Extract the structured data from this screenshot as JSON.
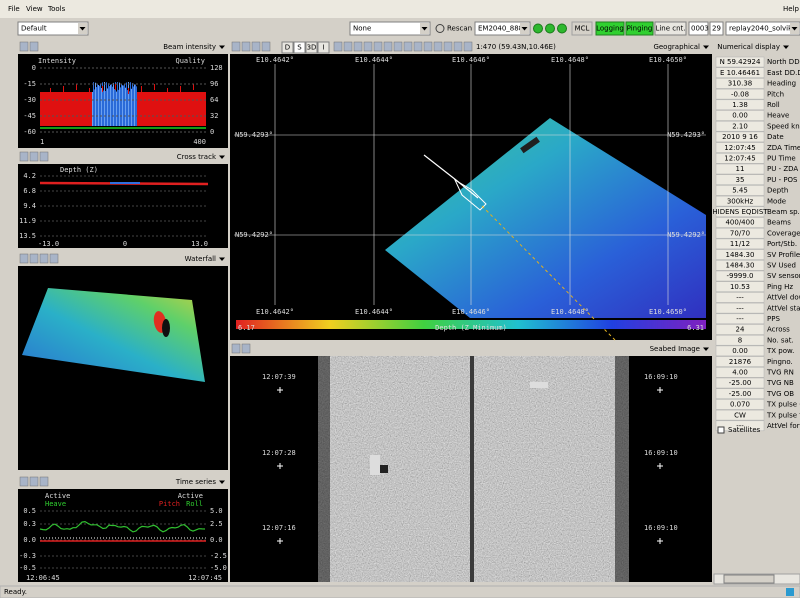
{
  "menu": [
    "File",
    "View",
    "Tools"
  ],
  "help": "Help",
  "toolbar": {
    "profile": "Default",
    "source": "None",
    "rescan": "Rescan",
    "system": "EM2040_888",
    "mcl": "MCL",
    "logging": "Logging",
    "pinging": "Pinging",
    "line_cnt": "Line cnt.",
    "line_no": "0003",
    "count": "29",
    "survey": "replay2040_solvikei"
  },
  "beam_intensity": {
    "title": "Beam intensity",
    "left_label": "Intensity",
    "right_label": "Quality",
    "yticks_left": [
      "0",
      "-15",
      "-30",
      "-45",
      "-60"
    ],
    "yticks_right": [
      "128",
      "96",
      "64",
      "32",
      "0"
    ],
    "xticks": [
      "1",
      "400"
    ]
  },
  "cross_track": {
    "title": "Cross track",
    "label": "Depth (Z)",
    "yticks": [
      "4.2",
      "6.8",
      "9.4",
      "11.9",
      "13.5"
    ],
    "xticks": [
      "-13.0",
      "0",
      "13.0"
    ]
  },
  "waterfall": {
    "title": "Waterfall"
  },
  "time_series": {
    "title": "Time series",
    "active_left": "Active",
    "active_right": "Active",
    "heave": "Heave",
    "pitch": "Pitch",
    "roll": "Roll",
    "yticks_left": [
      "0.5",
      "0.3",
      "0.0",
      "-0.3",
      "-0.5"
    ],
    "yticks_right": [
      "5.0",
      "2.5",
      "0.0",
      "-2.5",
      "-5.0"
    ],
    "xticks": [
      "12:06:45",
      "12:07:45"
    ]
  },
  "geographical": {
    "title": "Geographical",
    "modes": [
      "D",
      "S",
      "3D",
      "I"
    ],
    "scale": "1:470 (59.43N,10.46E)",
    "lon_labels": [
      "E10.4642°",
      "E10.4644°",
      "E10.4646°",
      "E10.4648°",
      "E10.4650°"
    ],
    "lat_labels": [
      "N59.4293°",
      "N59.4292°"
    ],
    "color_min": "6.17",
    "color_label": "Depth (Z Minimum)",
    "color_max": "6.31"
  },
  "seabed_image": {
    "title": "Seabed Image",
    "left_times": [
      "12:07:39",
      "12:07:28",
      "12:07:16"
    ],
    "right_times": [
      "16:09:10",
      "16:09:10",
      "16:09:10"
    ]
  },
  "numerical_display": {
    "title": "Numerical display",
    "satellites": "Satellites",
    "rows": [
      [
        "N 59.42924",
        "North DD.DD"
      ],
      [
        "E 10.46461",
        "East DD.DD"
      ],
      [
        "310.38",
        "Heading"
      ],
      [
        "-0.08",
        "Pitch"
      ],
      [
        "1.38",
        "Roll"
      ],
      [
        "0.00",
        "Heave"
      ],
      [
        "2.10",
        "Speed kn"
      ],
      [
        "2010 9 16",
        "Date"
      ],
      [
        "12:07:45",
        "ZDA Time"
      ],
      [
        "12:07:45",
        "PU Time"
      ],
      [
        "11",
        "PU - ZDA"
      ],
      [
        "35",
        "PU - POS"
      ],
      [
        "5.45",
        "Depth"
      ],
      [
        "300kHz",
        "Mode"
      ],
      [
        "HIDENS EQDIST",
        "Beam sp."
      ],
      [
        "400/400",
        "Beams"
      ],
      [
        "70/70",
        "Coverage"
      ],
      [
        "11/12",
        "Port/Stb."
      ],
      [
        "1484.30",
        "SV Profile"
      ],
      [
        "1484.30",
        "SV Used"
      ],
      [
        "-9999.0",
        "SV sensor"
      ],
      [
        "10.53",
        "Ping Hz"
      ],
      [
        "---",
        "AttVel dow"
      ],
      [
        "---",
        "AttVel star"
      ],
      [
        "---",
        "PPS"
      ],
      [
        "24",
        "Across"
      ],
      [
        "8",
        "No. sat."
      ],
      [
        "0.00",
        "TX pow."
      ],
      [
        "21876",
        "Pingno."
      ],
      [
        "4.00",
        "TVG RN"
      ],
      [
        "-25.00",
        "TVG NB"
      ],
      [
        "-25.00",
        "TVG OB"
      ],
      [
        "0.070",
        "TX pulse ("
      ],
      [
        "CW",
        "TX pulse fo"
      ],
      [
        "---",
        "AttVel forv"
      ]
    ]
  },
  "status": "Ready."
}
